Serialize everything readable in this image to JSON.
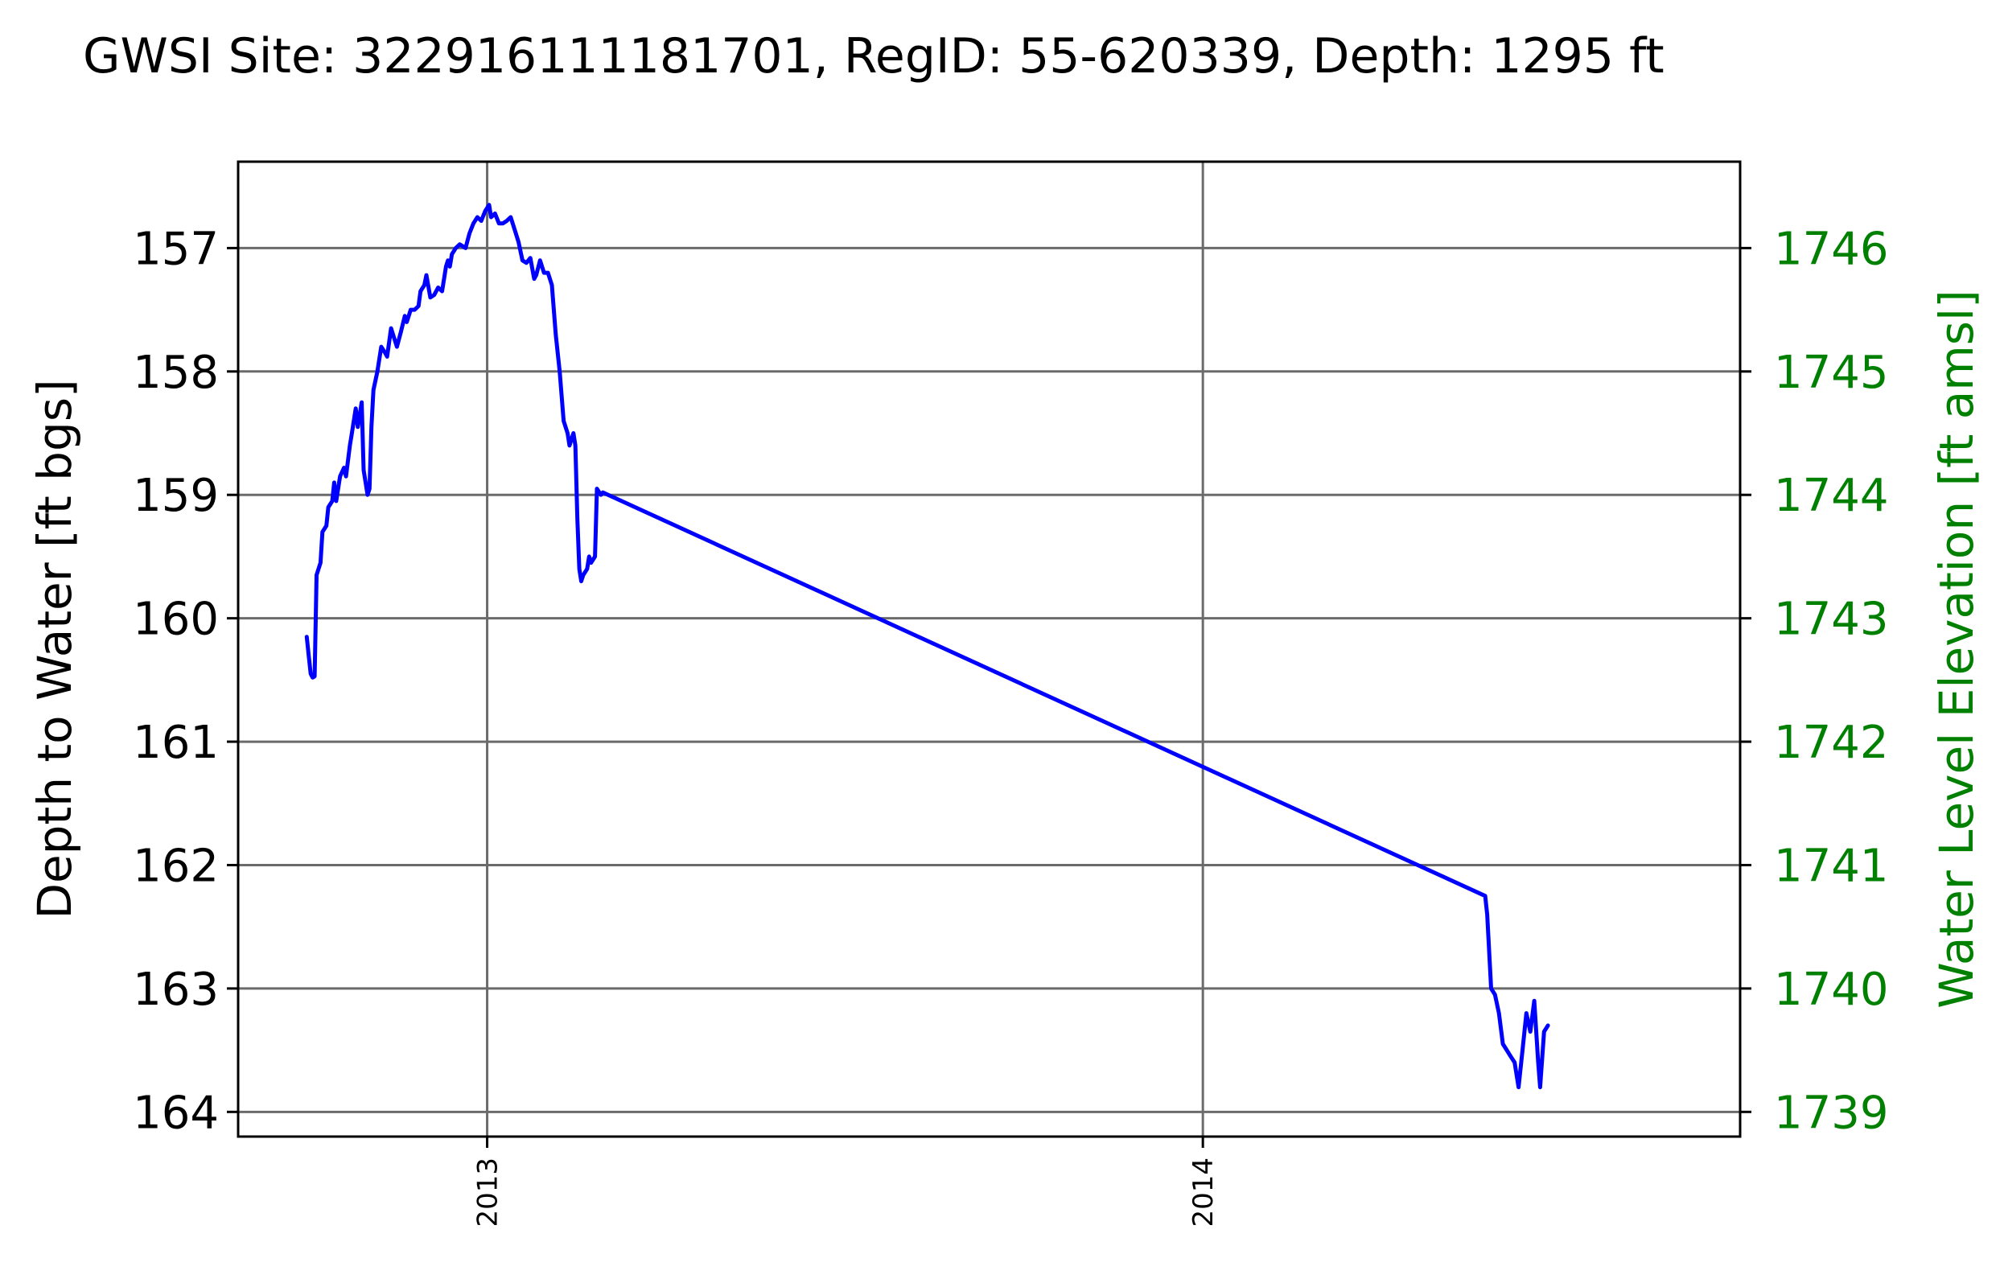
{
  "chart_data": {
    "type": "line",
    "title": "GWSI Site: 322916111181701, RegID: 55-620339, Depth: 1295 ft",
    "ylabel": "Depth to Water [ft bgs]",
    "ylabel_right": "Water Level Elevation [ft amsl]",
    "xlabel": "",
    "ylim": [
      164.2,
      156.3
    ],
    "y_inverted": true,
    "yticks": [
      157,
      158,
      159,
      160,
      161,
      162,
      163,
      164
    ],
    "ylim_right": [
      1738.8,
      1746.7
    ],
    "yticks_right": [
      1746,
      1745,
      1744,
      1743,
      1742,
      1741,
      1740,
      1739
    ],
    "xlim": [
      "2012-08-27",
      "2014-10-02"
    ],
    "xticks": [
      {
        "date": "2013-01-01",
        "label": "2013"
      },
      {
        "date": "2014-01-01",
        "label": "2014"
      }
    ],
    "grid": true,
    "colors": {
      "series": "#0000ff",
      "right_axis": "#008000",
      "grid": "#6b6b6b",
      "axes": "#000000"
    },
    "series": [
      {
        "points": [
          [
            "2012-10-01",
            160.15
          ],
          [
            "2012-10-02",
            160.3
          ],
          [
            "2012-10-03",
            160.45
          ],
          [
            "2012-10-04",
            160.48
          ],
          [
            "2012-10-05",
            160.47
          ],
          [
            "2012-10-06",
            159.65
          ],
          [
            "2012-10-08",
            159.55
          ],
          [
            "2012-10-09",
            159.3
          ],
          [
            "2012-10-11",
            159.25
          ],
          [
            "2012-10-12",
            159.1
          ],
          [
            "2012-10-14",
            159.05
          ],
          [
            "2012-10-15",
            158.9
          ],
          [
            "2012-10-16",
            159.05
          ],
          [
            "2012-10-18",
            158.85
          ],
          [
            "2012-10-20",
            158.78
          ],
          [
            "2012-10-21",
            158.85
          ],
          [
            "2012-10-23",
            158.6
          ],
          [
            "2012-10-24",
            158.5
          ],
          [
            "2012-10-26",
            158.3
          ],
          [
            "2012-10-27",
            158.45
          ],
          [
            "2012-10-29",
            158.25
          ],
          [
            "2012-10-30",
            158.8
          ],
          [
            "2012-11-01",
            159.0
          ],
          [
            "2012-11-02",
            158.95
          ],
          [
            "2012-11-03",
            158.45
          ],
          [
            "2012-11-04",
            158.15
          ],
          [
            "2012-11-06",
            158.0
          ],
          [
            "2012-11-07",
            157.9
          ],
          [
            "2012-11-08",
            157.8
          ],
          [
            "2012-11-10",
            157.85
          ],
          [
            "2012-11-11",
            157.88
          ],
          [
            "2012-11-13",
            157.65
          ],
          [
            "2012-11-14",
            157.7
          ],
          [
            "2012-11-16",
            157.8
          ],
          [
            "2012-11-18",
            157.68
          ],
          [
            "2012-11-20",
            157.55
          ],
          [
            "2012-11-21",
            157.6
          ],
          [
            "2012-11-23",
            157.5
          ],
          [
            "2012-11-25",
            157.5
          ],
          [
            "2012-11-27",
            157.47
          ],
          [
            "2012-11-28",
            157.35
          ],
          [
            "2012-11-30",
            157.3
          ],
          [
            "2012-12-01",
            157.22
          ],
          [
            "2012-12-03",
            157.4
          ],
          [
            "2012-12-05",
            157.38
          ],
          [
            "2012-12-07",
            157.32
          ],
          [
            "2012-12-09",
            157.35
          ],
          [
            "2012-12-11",
            157.15
          ],
          [
            "2012-12-12",
            157.1
          ],
          [
            "2012-12-13",
            157.15
          ],
          [
            "2012-12-14",
            157.05
          ],
          [
            "2012-12-16",
            157.0
          ],
          [
            "2012-12-18",
            156.97
          ],
          [
            "2012-12-21",
            157.0
          ],
          [
            "2012-12-23",
            156.88
          ],
          [
            "2012-12-25",
            156.8
          ],
          [
            "2012-12-27",
            156.75
          ],
          [
            "2012-12-29",
            156.78
          ],
          [
            "2012-12-31",
            156.7
          ],
          [
            "2013-01-02",
            156.65
          ],
          [
            "2013-01-03",
            156.75
          ],
          [
            "2013-01-05",
            156.72
          ],
          [
            "2013-01-07",
            156.8
          ],
          [
            "2013-01-09",
            156.8
          ],
          [
            "2013-01-11",
            156.78
          ],
          [
            "2013-01-13",
            156.75
          ],
          [
            "2013-01-15",
            156.85
          ],
          [
            "2013-01-17",
            156.95
          ],
          [
            "2013-01-19",
            157.1
          ],
          [
            "2013-01-21",
            157.12
          ],
          [
            "2013-01-23",
            157.08
          ],
          [
            "2013-01-25",
            157.25
          ],
          [
            "2013-01-26",
            157.22
          ],
          [
            "2013-01-28",
            157.1
          ],
          [
            "2013-01-30",
            157.2
          ],
          [
            "2013-02-01",
            157.2
          ],
          [
            "2013-02-03",
            157.3
          ],
          [
            "2013-02-05",
            157.7
          ],
          [
            "2013-02-07",
            158.0
          ],
          [
            "2013-02-09",
            158.4
          ],
          [
            "2013-02-11",
            158.5
          ],
          [
            "2013-02-12",
            158.6
          ],
          [
            "2013-02-13",
            158.55
          ],
          [
            "2013-02-14",
            158.5
          ],
          [
            "2013-02-15",
            158.6
          ],
          [
            "2013-02-16",
            159.2
          ],
          [
            "2013-02-17",
            159.6
          ],
          [
            "2013-02-18",
            159.7
          ],
          [
            "2013-02-19",
            159.65
          ],
          [
            "2013-02-21",
            159.6
          ],
          [
            "2013-02-22",
            159.5
          ],
          [
            "2013-02-23",
            159.55
          ],
          [
            "2013-02-25",
            159.5
          ],
          [
            "2013-02-26",
            158.95
          ],
          [
            "2013-02-28",
            159.0
          ],
          [
            "2013-03-01",
            158.98
          ],
          [
            "2014-05-25",
            162.25
          ],
          [
            "2014-05-26",
            162.4
          ],
          [
            "2014-05-28",
            163.0
          ],
          [
            "2014-05-30",
            163.05
          ],
          [
            "2014-06-01",
            163.2
          ],
          [
            "2014-06-03",
            163.45
          ],
          [
            "2014-06-05",
            163.5
          ],
          [
            "2014-06-07",
            163.55
          ],
          [
            "2014-06-09",
            163.6
          ],
          [
            "2014-06-11",
            163.8
          ],
          [
            "2014-06-13",
            163.5
          ],
          [
            "2014-06-15",
            163.2
          ],
          [
            "2014-06-17",
            163.35
          ],
          [
            "2014-06-19",
            163.1
          ],
          [
            "2014-06-21",
            163.6
          ],
          [
            "2014-06-22",
            163.8
          ],
          [
            "2014-06-24",
            163.35
          ],
          [
            "2014-06-26",
            163.3
          ]
        ]
      }
    ]
  }
}
